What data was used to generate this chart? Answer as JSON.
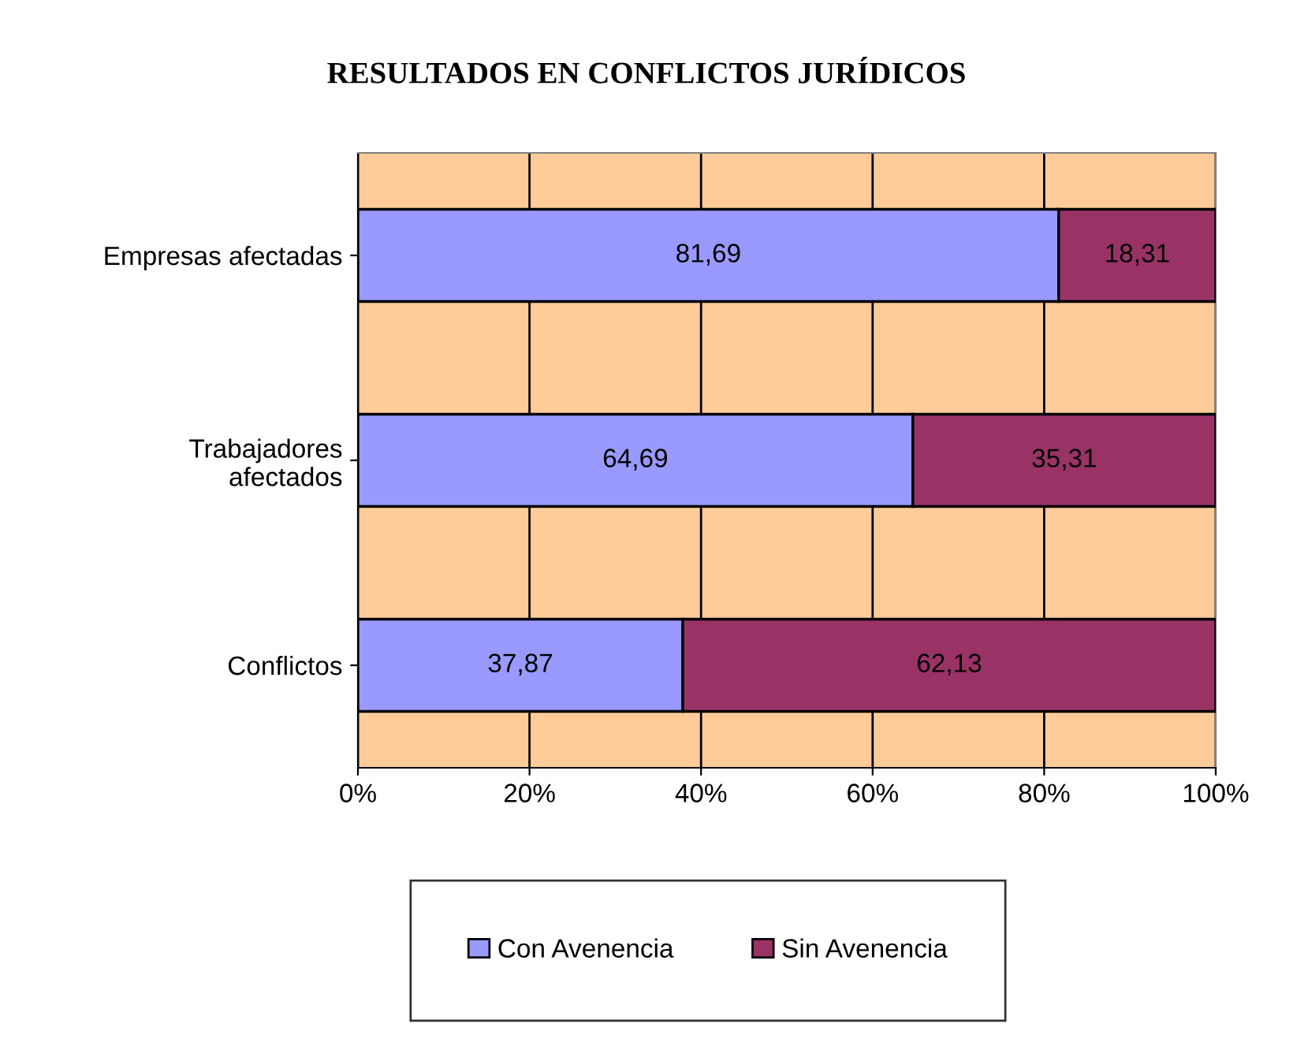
{
  "chart_data": {
    "type": "bar",
    "orientation": "horizontal",
    "stacked": true,
    "title": "RESULTADOS EN CONFLICTOS JURÍDICOS",
    "categories": [
      "Empresas afectadas",
      "Trabajadores\nafectados",
      "Conflictos"
    ],
    "series": [
      {
        "name": "Con Avenencia",
        "color": "#9999ff",
        "values": [
          81.69,
          64.69,
          37.87
        ],
        "value_labels": [
          "81,69",
          "64,69",
          "37,87"
        ]
      },
      {
        "name": "Sin Avenencia",
        "color": "#993366",
        "values": [
          18.31,
          35.31,
          62.13
        ],
        "value_labels": [
          "18,31",
          "35,31",
          "62,13"
        ]
      }
    ],
    "xlim": [
      0,
      100
    ],
    "xticks": [
      {
        "value": 0,
        "label": "0%"
      },
      {
        "value": 20,
        "label": "20%"
      },
      {
        "value": 40,
        "label": "40%"
      },
      {
        "value": 60,
        "label": "60%"
      },
      {
        "value": 80,
        "label": "80%"
      },
      {
        "value": 100,
        "label": "100%"
      }
    ],
    "grid": "x",
    "legend": "bottom"
  }
}
